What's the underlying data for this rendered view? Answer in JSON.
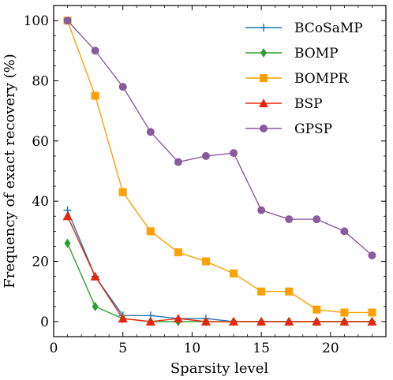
{
  "chart_data": {
    "type": "line",
    "xlabel": "Sparsity level",
    "ylabel": "Frequency of exact recovery (%)",
    "xlim": [
      0,
      24
    ],
    "ylim": [
      -5,
      105
    ],
    "xticks": [
      0,
      5,
      10,
      15,
      20
    ],
    "yticks": [
      0,
      20,
      40,
      60,
      80,
      100
    ],
    "grid": false,
    "legend_position": "top-right",
    "x": [
      1,
      3,
      5,
      7,
      9,
      11,
      13,
      15,
      17,
      19,
      21,
      23
    ],
    "series": [
      {
        "name": "BCoSaMP",
        "color": "#1f77b4",
        "marker": "plus",
        "values": [
          37,
          15,
          2,
          2,
          1,
          1,
          0,
          0,
          0,
          0,
          0,
          0
        ]
      },
      {
        "name": "BOMP",
        "color": "#2ca02c",
        "marker": "diamond",
        "values": [
          26,
          5,
          1,
          0,
          0,
          0,
          0,
          0,
          0,
          0,
          0,
          0
        ]
      },
      {
        "name": "BOMPR",
        "color": "#ff9f00",
        "marker": "square",
        "values": [
          100,
          75,
          43,
          30,
          23,
          20,
          16,
          10,
          10,
          4,
          3,
          3
        ]
      },
      {
        "name": "BSP",
        "color": "#e8260d",
        "marker": "triangle",
        "values": [
          35,
          15,
          1,
          0,
          1,
          0,
          0,
          0,
          0,
          0,
          0,
          0
        ]
      },
      {
        "name": "GPSP",
        "color": "#8a5a9f",
        "marker": "circle",
        "values": [
          100,
          90,
          78,
          63,
          53,
          55,
          56,
          37,
          34,
          34,
          30,
          22
        ]
      }
    ]
  }
}
